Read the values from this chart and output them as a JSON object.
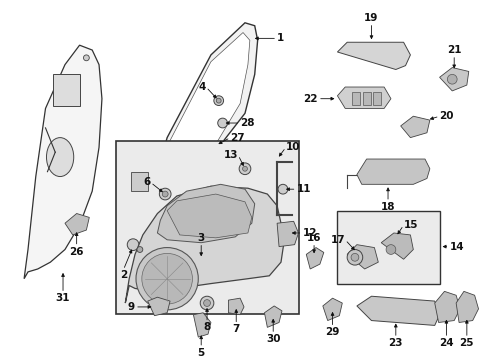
{
  "bg_color": "#ffffff",
  "fig_width": 4.89,
  "fig_height": 3.6,
  "dpi": 100,
  "label_fs": 7.5,
  "label_color": "#111111",
  "line_color": "#333333",
  "part_fill": "#e8e8e8",
  "part_edge": "#333333",
  "box_fill": "#ebebeb"
}
